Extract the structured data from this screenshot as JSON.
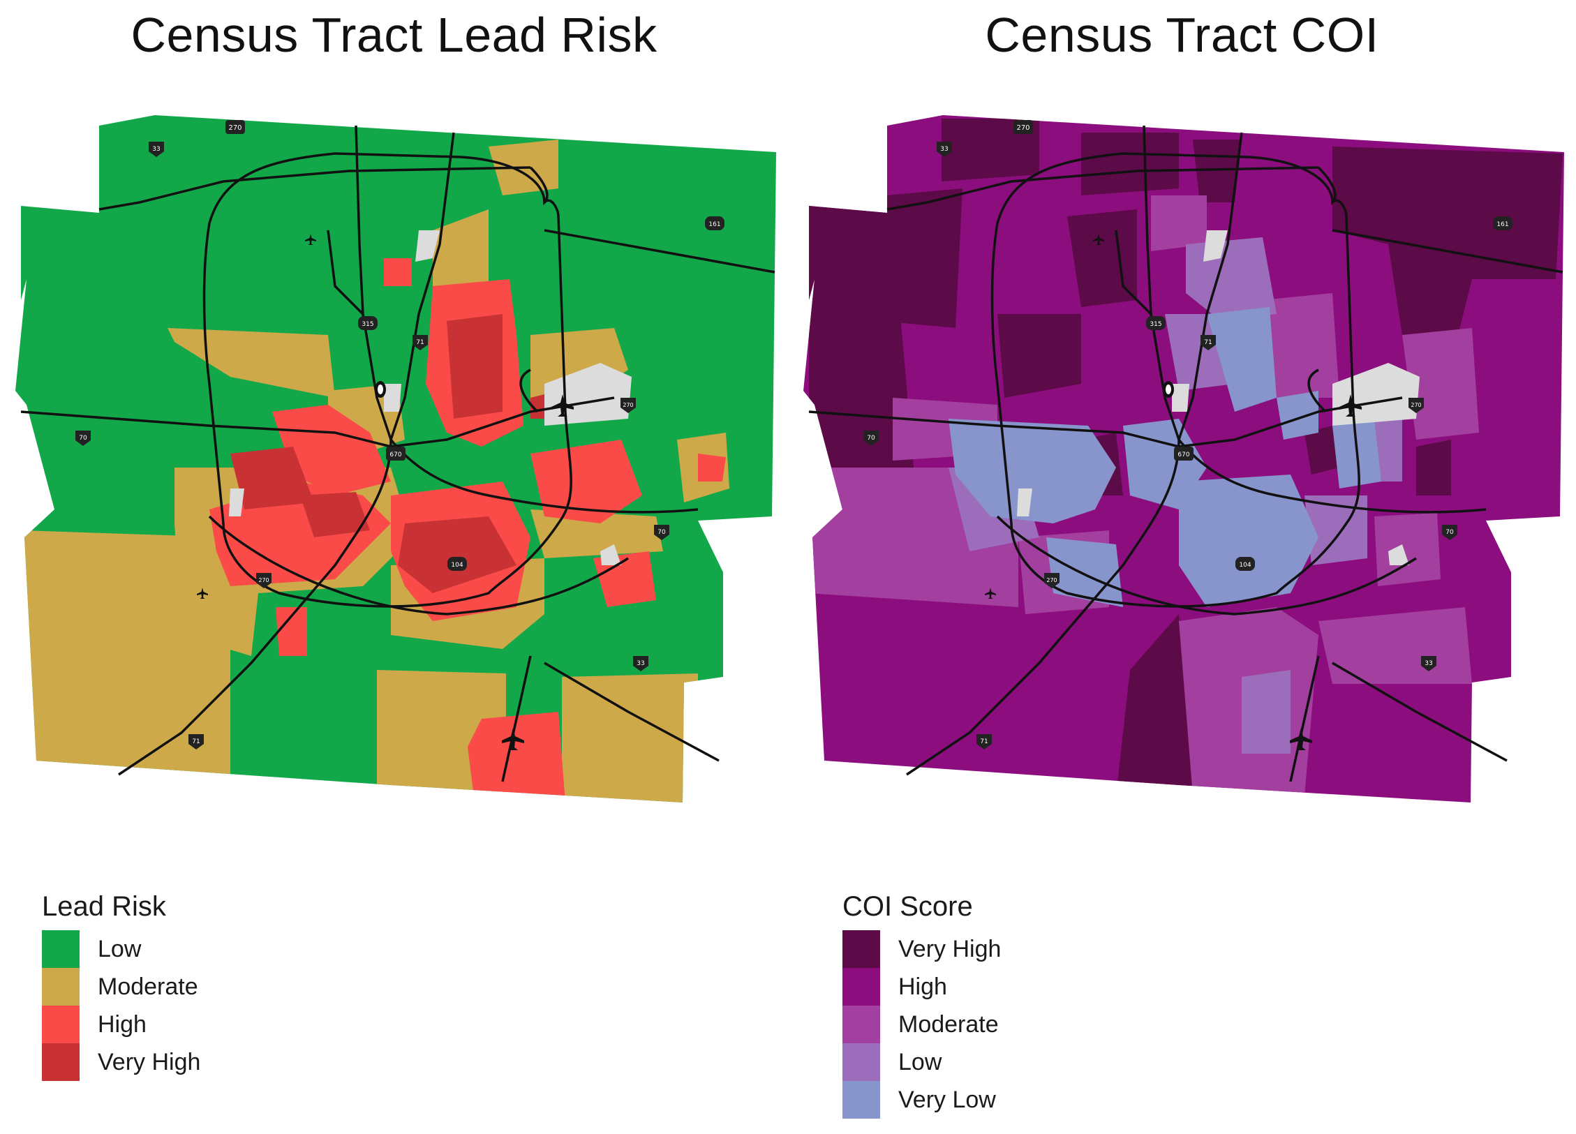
{
  "panels": [
    {
      "title": "Census Tract Lead Risk",
      "legend": {
        "title": "Lead Risk",
        "items": [
          {
            "label": "Low",
            "color": "#12a84a"
          },
          {
            "label": "Moderate",
            "color": "#cda94a"
          },
          {
            "label": "High",
            "color": "#fb4b48"
          },
          {
            "label": "Very High",
            "color": "#c93234"
          }
        ]
      },
      "no_data_color": "#dcdcdc"
    },
    {
      "title": "Census Tract COI",
      "legend": {
        "title": "COI Score",
        "items": [
          {
            "label": "Very High",
            "color": "#5c0a48"
          },
          {
            "label": "High",
            "color": "#8c0e7e"
          },
          {
            "label": "Moderate",
            "color": "#a33f9e"
          },
          {
            "label": "Low",
            "color": "#9c6dbb"
          },
          {
            "label": "Very Low",
            "color": "#8895cd"
          }
        ]
      },
      "no_data_color": "#dcdcdc"
    }
  ],
  "highway_shields": [
    "270",
    "33",
    "161",
    "315",
    "71",
    "670",
    "70",
    "104"
  ],
  "icons": [
    "airport-icon",
    "stadium-icon"
  ]
}
